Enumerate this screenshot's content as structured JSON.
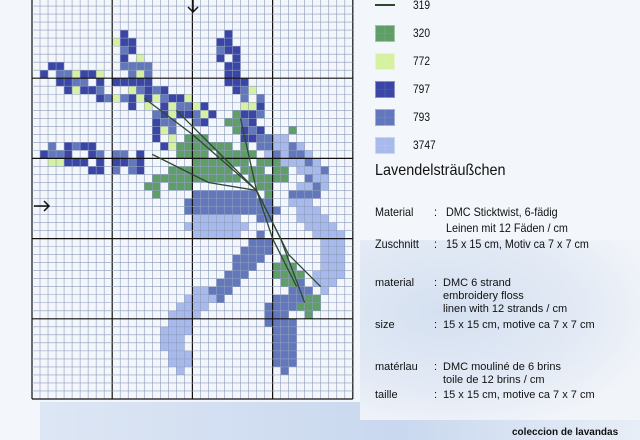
{
  "legend": [
    {
      "code": "319",
      "kind": "line",
      "color": "#2e4a2e"
    },
    {
      "code": "320",
      "kind": "cross",
      "color": "#5f9e66"
    },
    {
      "code": "772",
      "kind": "cross",
      "color": "#d6f2a0"
    },
    {
      "code": "797",
      "kind": "cross",
      "color": "#3a45a6"
    },
    {
      "code": "793",
      "kind": "cross",
      "color": "#6377bd"
    },
    {
      "code": "3747",
      "kind": "cross",
      "color": "#a8b9ec"
    }
  ],
  "title": "Lavendelsträußchen",
  "german": {
    "material_label": "Material",
    "material_sep": ":",
    "material_1": "DMC Sticktwist, 6-fädig",
    "material_2": "Leinen mit 12 Fäden / cm",
    "size_label": "Zuschnitt",
    "size_sep": ":",
    "size": "15 x 15 cm, Motiv ca 7 x 7 cm"
  },
  "english": {
    "material_label": "material",
    "material_sep": ":",
    "material_1": "DMC 6  strand",
    "material_2": "embroidery floss",
    "material_3": "linen with 12 strands / cm",
    "size_label": "size",
    "size_sep": ":",
    "size": "15 x 15 cm, motive ca 7 x 7 cm"
  },
  "french": {
    "material_label": "matérlau",
    "material_sep": ":",
    "material_1": "DMC mouliné de 6 brins",
    "material_2": "toile de 12 brins / cm",
    "size_label": "taille",
    "size_sep": ":",
    "size": "15 x 15 cm, motive ca 7 x 7 cm"
  },
  "footer": "coleccion de lavandas"
}
